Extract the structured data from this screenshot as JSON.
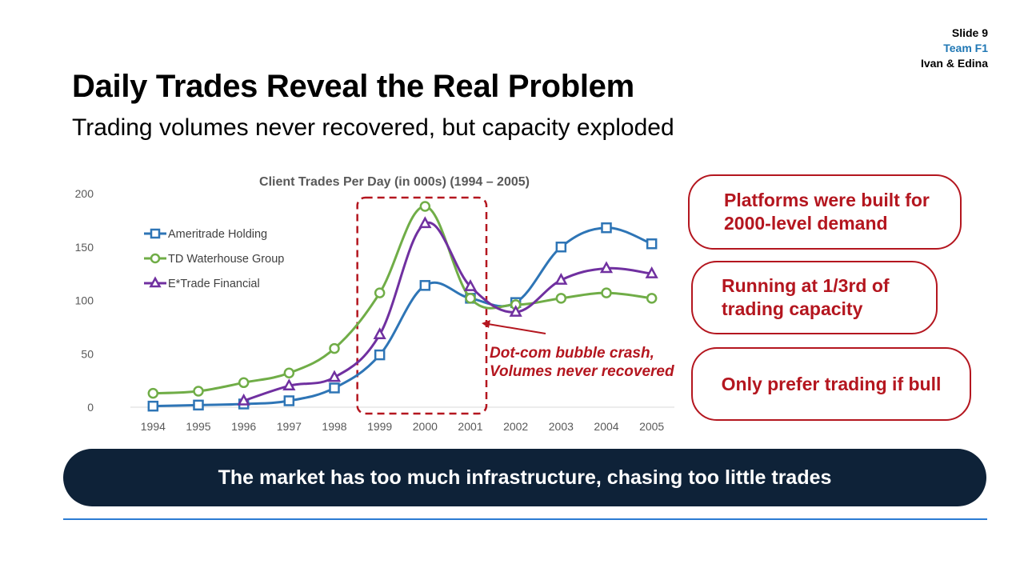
{
  "meta": {
    "slide": "Slide 9",
    "team": "Team F1",
    "authors": "Ivan & Edina"
  },
  "title": "Daily Trades Reveal the Real Problem",
  "subtitle": "Trading volumes never recovered, but capacity exploded",
  "callouts": [
    {
      "line1": "Platforms were built for",
      "line2": "2000-level demand"
    },
    {
      "line1": "Running at 1/3rd of",
      "line2": "trading capacity"
    },
    {
      "line1": "Only prefer trading if bull"
    }
  ],
  "banner": "The market has too much infrastructure, chasing too little trades",
  "annotation": {
    "line1": "Dot-com bubble crash,",
    "line2": "Volumes never recovered"
  },
  "colors": {
    "ameritrade": "#2e75b6",
    "td": "#70ad47",
    "etrade": "#7030a0",
    "accent": "#b4161f",
    "banner": "#0e2238"
  },
  "chart_data": {
    "type": "line",
    "title": "Client Trades Per Day (in 000s) (1994 – 2005)",
    "x": [
      "1994",
      "1995",
      "1996",
      "1997",
      "1998",
      "1999",
      "2000",
      "2001",
      "2002",
      "2003",
      "2004",
      "2005"
    ],
    "ylim": [
      0,
      200
    ],
    "yticks": [
      0,
      50,
      100,
      150,
      200
    ],
    "legend_position": "top-left",
    "highlight_range": [
      "1999",
      "2001"
    ],
    "series": [
      {
        "name": "Ameritrade Holding",
        "marker": "square",
        "color": "#2e75b6",
        "values": [
          1,
          2,
          3,
          6,
          18,
          49,
          114,
          102,
          98,
          150,
          168,
          153
        ]
      },
      {
        "name": "TD Waterhouse Group",
        "marker": "circle",
        "color": "#70ad47",
        "values": [
          13,
          15,
          23,
          32,
          55,
          107,
          188,
          102,
          96,
          102,
          107,
          102
        ]
      },
      {
        "name": "E*Trade Financial",
        "marker": "triangle",
        "color": "#7030a0",
        "values": [
          null,
          null,
          6,
          20,
          28,
          68,
          172,
          113,
          89,
          119,
          130,
          125
        ]
      }
    ]
  }
}
